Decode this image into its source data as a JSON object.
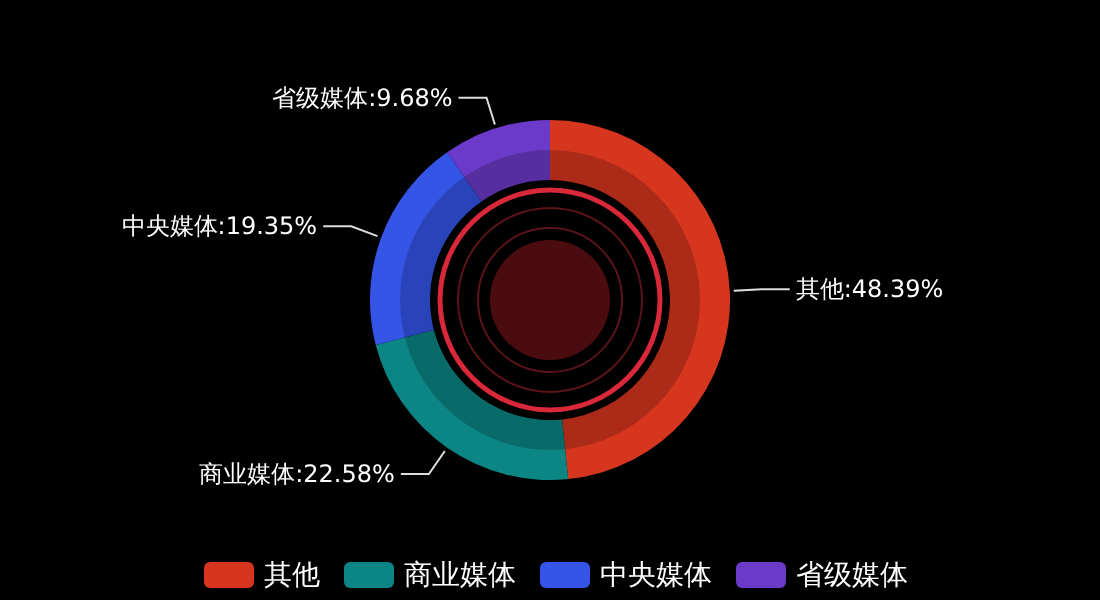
{
  "chart_data": {
    "type": "donut",
    "categories": [
      "其他",
      "商业媒体",
      "中央媒体",
      "省级媒体"
    ],
    "values": [
      48.39,
      22.58,
      19.35,
      9.68
    ],
    "colors": [
      "#d6361e",
      "#0b8684",
      "#3455e6",
      "#6c3ac8"
    ],
    "value_labels": [
      "其他:48.39%",
      "商业媒体:22.58%",
      "中央媒体:19.35%",
      "省级媒体:9.68%"
    ],
    "legend": "bottom"
  }
}
